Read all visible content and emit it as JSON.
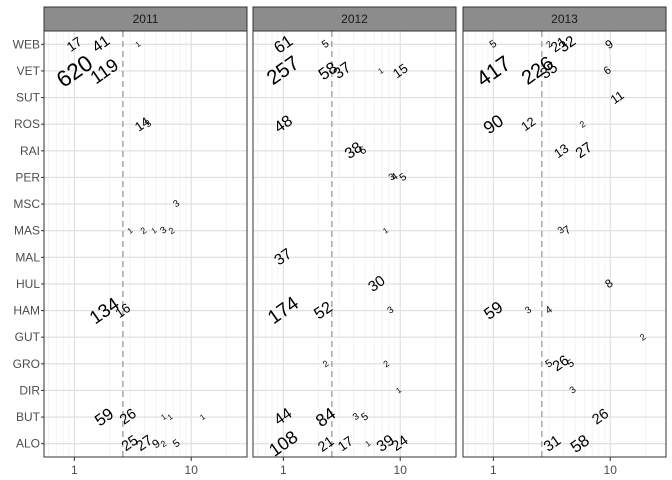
{
  "chart_data": {
    "type": "scatter",
    "title": "",
    "xlabel": "",
    "ylabel": "",
    "x_scale": "log10",
    "xlim": [
      0.55,
      30
    ],
    "x_ticks": [
      1,
      10
    ],
    "x_tick_labels": [
      "1",
      "10"
    ],
    "reference_line_x": 2.6,
    "grid": true,
    "categories": [
      "ALO",
      "BUT",
      "DIR",
      "GRO",
      "GUT",
      "HAM",
      "HUL",
      "MAL",
      "MAS",
      "MSC",
      "PER",
      "RAI",
      "ROS",
      "SUT",
      "VET",
      "WEB"
    ],
    "facets": [
      {
        "label": "2011",
        "points": [
          {
            "y": "WEB",
            "x": 1.0,
            "label": "17"
          },
          {
            "y": "WEB",
            "x": 1.7,
            "label": "41"
          },
          {
            "y": "WEB",
            "x": 3.5,
            "label": "1"
          },
          {
            "y": "VET",
            "x": 1.0,
            "label": "620"
          },
          {
            "y": "VET",
            "x": 1.8,
            "label": "119"
          },
          {
            "y": "ROS",
            "x": 3.8,
            "label": "14"
          },
          {
            "y": "ROS",
            "x": 4.3,
            "label": "3"
          },
          {
            "y": "MSC",
            "x": 7.5,
            "label": "3"
          },
          {
            "y": "MAS",
            "x": 3.0,
            "label": "1"
          },
          {
            "y": "MAS",
            "x": 3.9,
            "label": "2"
          },
          {
            "y": "MAS",
            "x": 4.8,
            "label": "1"
          },
          {
            "y": "MAS",
            "x": 5.8,
            "label": "3"
          },
          {
            "y": "MAS",
            "x": 6.8,
            "label": "2"
          },
          {
            "y": "HAM",
            "x": 1.8,
            "label": "134"
          },
          {
            "y": "HAM",
            "x": 2.6,
            "label": "16"
          },
          {
            "y": "BUT",
            "x": 1.8,
            "label": "59"
          },
          {
            "y": "BUT",
            "x": 2.9,
            "label": "26"
          },
          {
            "y": "BUT",
            "x": 5.8,
            "label": "1"
          },
          {
            "y": "BUT",
            "x": 6.6,
            "label": "1"
          },
          {
            "y": "BUT",
            "x": 12.5,
            "label": "1"
          },
          {
            "y": "ALO",
            "x": 3.0,
            "label": "25"
          },
          {
            "y": "ALO",
            "x": 4.0,
            "label": "27"
          },
          {
            "y": "ALO",
            "x": 5.0,
            "label": "9"
          },
          {
            "y": "ALO",
            "x": 5.8,
            "label": "2"
          },
          {
            "y": "ALO",
            "x": 7.5,
            "label": "5"
          }
        ]
      },
      {
        "label": "2012",
        "points": [
          {
            "y": "WEB",
            "x": 1.0,
            "label": "61"
          },
          {
            "y": "WEB",
            "x": 2.3,
            "label": "5"
          },
          {
            "y": "VET",
            "x": 1.0,
            "label": "257"
          },
          {
            "y": "VET",
            "x": 2.4,
            "label": "58"
          },
          {
            "y": "VET",
            "x": 3.2,
            "label": "37"
          },
          {
            "y": "VET",
            "x": 6.8,
            "label": "1"
          },
          {
            "y": "VET",
            "x": 10.0,
            "label": "15"
          },
          {
            "y": "ROS",
            "x": 1.0,
            "label": "48"
          },
          {
            "y": "RAI",
            "x": 4.0,
            "label": "38"
          },
          {
            "y": "RAI",
            "x": 4.8,
            "label": "6"
          },
          {
            "y": "PER",
            "x": 8.5,
            "label": "3"
          },
          {
            "y": "PER",
            "x": 9.0,
            "label": "4"
          },
          {
            "y": "PER",
            "x": 10.6,
            "label": "5"
          },
          {
            "y": "MAS",
            "x": 7.5,
            "label": "1"
          },
          {
            "y": "MAL",
            "x": 1.0,
            "label": "37"
          },
          {
            "y": "HUL",
            "x": 6.3,
            "label": "30"
          },
          {
            "y": "HAM",
            "x": 1.0,
            "label": "174"
          },
          {
            "y": "HAM",
            "x": 2.2,
            "label": "52"
          },
          {
            "y": "HAM",
            "x": 8.3,
            "label": "3"
          },
          {
            "y": "GRO",
            "x": 2.3,
            "label": "2"
          },
          {
            "y": "GRO",
            "x": 7.6,
            "label": "2"
          },
          {
            "y": "DIR",
            "x": 9.7,
            "label": "1"
          },
          {
            "y": "BUT",
            "x": 1.0,
            "label": "44"
          },
          {
            "y": "BUT",
            "x": 2.3,
            "label": "84"
          },
          {
            "y": "BUT",
            "x": 4.2,
            "label": "3"
          },
          {
            "y": "BUT",
            "x": 5.0,
            "label": "5"
          },
          {
            "y": "ALO",
            "x": 1.0,
            "label": "108"
          },
          {
            "y": "ALO",
            "x": 2.3,
            "label": "21"
          },
          {
            "y": "ALO",
            "x": 3.4,
            "label": "17"
          },
          {
            "y": "ALO",
            "x": 5.3,
            "label": "1"
          },
          {
            "y": "ALO",
            "x": 7.5,
            "label": "39"
          },
          {
            "y": "ALO",
            "x": 10.0,
            "label": "24"
          }
        ]
      },
      {
        "label": "2013",
        "points": [
          {
            "y": "WEB",
            "x": 1.0,
            "label": "5"
          },
          {
            "y": "WEB",
            "x": 3.0,
            "label": "2"
          },
          {
            "y": "WEB",
            "x": 3.6,
            "label": "21"
          },
          {
            "y": "WEB",
            "x": 4.3,
            "label": "32"
          },
          {
            "y": "WEB",
            "x": 9.8,
            "label": "9"
          },
          {
            "y": "VET",
            "x": 1.0,
            "label": "417"
          },
          {
            "y": "VET",
            "x": 2.4,
            "label": "226"
          },
          {
            "y": "VET",
            "x": 3.0,
            "label": "35"
          },
          {
            "y": "VET",
            "x": 9.5,
            "label": "6"
          },
          {
            "y": "SUT",
            "x": 11.5,
            "label": "11"
          },
          {
            "y": "ROS",
            "x": 1.0,
            "label": "90"
          },
          {
            "y": "ROS",
            "x": 2.0,
            "label": "12"
          },
          {
            "y": "ROS",
            "x": 5.8,
            "label": "2"
          },
          {
            "y": "RAI",
            "x": 3.8,
            "label": "13"
          },
          {
            "y": "RAI",
            "x": 6.0,
            "label": "27"
          },
          {
            "y": "MAS",
            "x": 3.8,
            "label": "3"
          },
          {
            "y": "MAS",
            "x": 4.3,
            "label": "7"
          },
          {
            "y": "HUL",
            "x": 9.8,
            "label": "8"
          },
          {
            "y": "HAM",
            "x": 1.0,
            "label": "59"
          },
          {
            "y": "HAM",
            "x": 2.0,
            "label": "3"
          },
          {
            "y": "HAM",
            "x": 3.0,
            "label": "4"
          },
          {
            "y": "GUT",
            "x": 19.0,
            "label": "2"
          },
          {
            "y": "GRO",
            "x": 3.0,
            "label": "5"
          },
          {
            "y": "GRO",
            "x": 3.8,
            "label": "26"
          },
          {
            "y": "GRO",
            "x": 4.6,
            "label": "5"
          },
          {
            "y": "DIR",
            "x": 4.8,
            "label": "3"
          },
          {
            "y": "BUT",
            "x": 8.3,
            "label": "26"
          },
          {
            "y": "ALO",
            "x": 3.2,
            "label": "31"
          },
          {
            "y": "ALO",
            "x": 5.5,
            "label": "58"
          }
        ]
      }
    ]
  },
  "colors": {
    "strip_fill": "#8c8c8c",
    "strip_border": "#333333",
    "panel_border": "#333333",
    "grid": "#dedede",
    "reference_line": "#999999",
    "label": "#000000"
  }
}
